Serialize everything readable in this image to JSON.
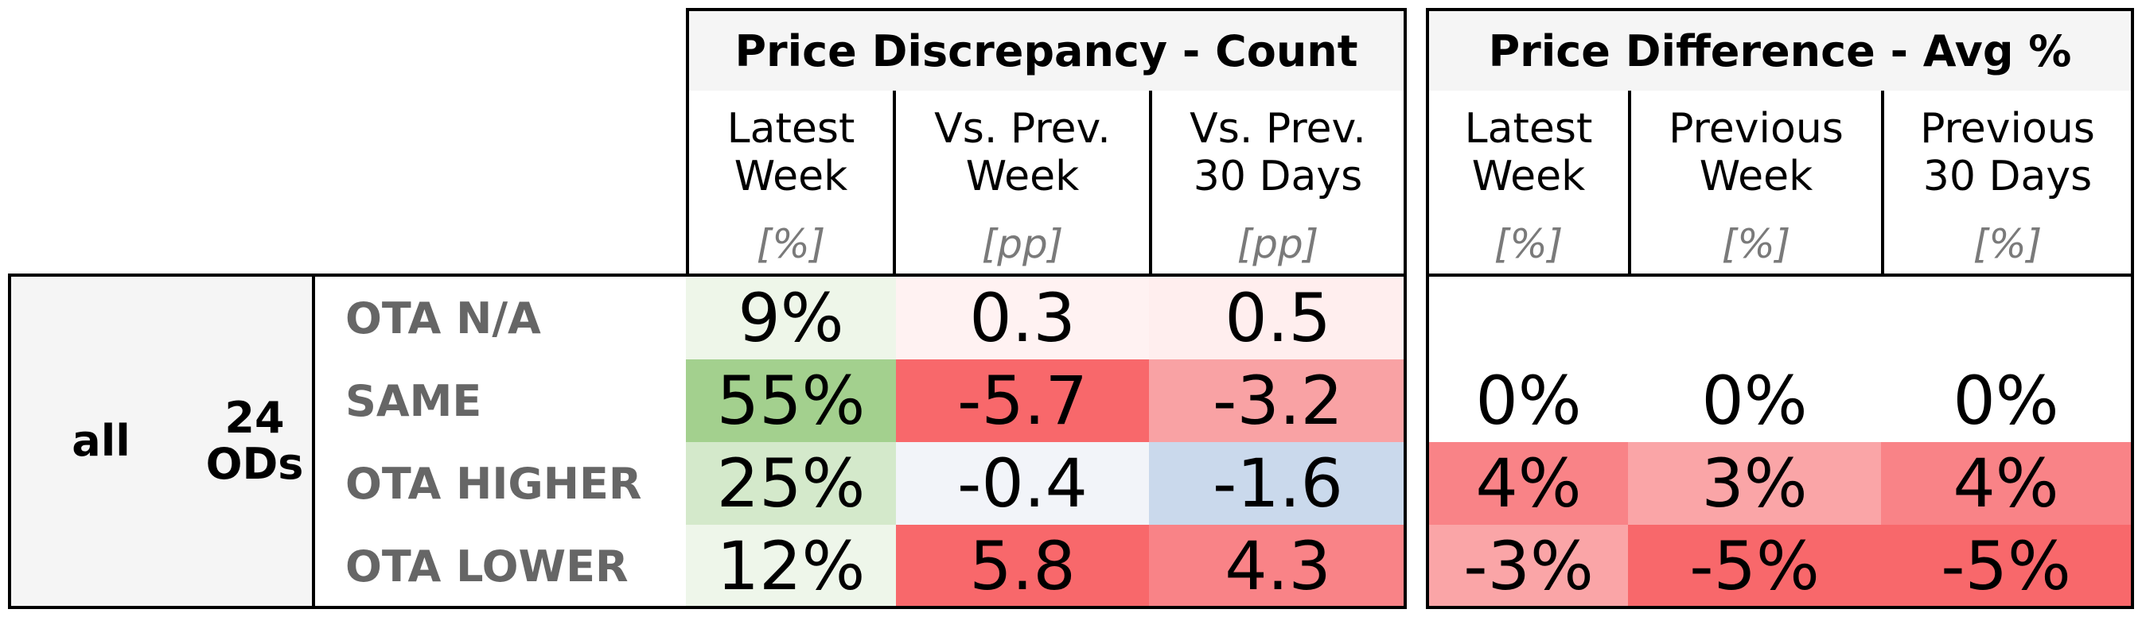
{
  "groups": [
    {
      "title": "Price Discrepancy - Count",
      "columns": [
        {
          "label": "Latest\nWeek",
          "unit": "[%]"
        },
        {
          "label": "Vs. Prev.\nWeek",
          "unit": "[pp]"
        },
        {
          "label": "Vs. Prev.\n30 Days",
          "unit": "[pp]"
        }
      ]
    },
    {
      "title": "Price Difference - Avg %",
      "columns": [
        {
          "label": "Latest\nWeek",
          "unit": "[%]"
        },
        {
          "label": "Previous\nWeek",
          "unit": "[%]"
        },
        {
          "label": "Previous\n30 Days",
          "unit": "[%]"
        }
      ]
    }
  ],
  "segment": {
    "label": "all",
    "count_label": "24\nODs"
  },
  "rows": [
    {
      "label": "OTA N/A",
      "values": [
        "9%",
        "0.3",
        "0.5",
        "",
        "",
        ""
      ],
      "colors": [
        "#eef6e9",
        "#fff2f2",
        "#ffeeee",
        "#ffffff",
        "#ffffff",
        "#ffffff"
      ]
    },
    {
      "label": "SAME",
      "values": [
        "55%",
        "-5.7",
        "-3.2",
        "0%",
        "0%",
        "0%"
      ],
      "colors": [
        "#a3d08e",
        "#f8686b",
        "#f9a2a4",
        "#ffffff",
        "#ffffff",
        "#ffffff"
      ]
    },
    {
      "label": "OTA HIGHER",
      "values": [
        "25%",
        "-0.4",
        "-1.6",
        "4%",
        "3%",
        "4%"
      ],
      "colors": [
        "#d4e9cb",
        "#f2f4f9",
        "#cad9ec",
        "#f98387",
        "#faa5a7",
        "#f98387"
      ]
    },
    {
      "label": "OTA LOWER",
      "values": [
        "12%",
        "5.8",
        "4.3",
        "-3%",
        "-5%",
        "-5%"
      ],
      "colors": [
        "#eef6ea",
        "#f8686b",
        "#f98387",
        "#faa5a7",
        "#f8686b",
        "#f8686b"
      ]
    }
  ]
}
